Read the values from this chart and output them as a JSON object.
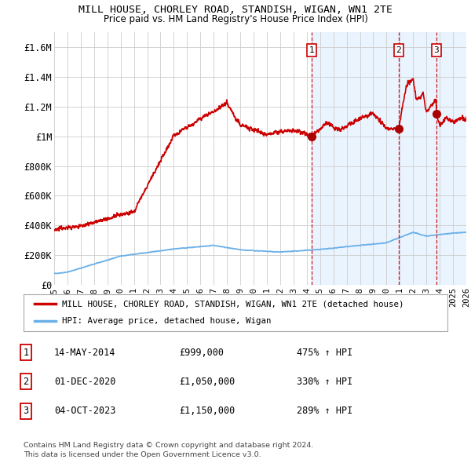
{
  "title": "MILL HOUSE, CHORLEY ROAD, STANDISH, WIGAN, WN1 2TE",
  "subtitle": "Price paid vs. HM Land Registry's House Price Index (HPI)",
  "xlim": [
    1995,
    2026
  ],
  "ylim": [
    0,
    1700000
  ],
  "yticks": [
    0,
    200000,
    400000,
    600000,
    800000,
    1000000,
    1200000,
    1400000,
    1600000
  ],
  "ytick_labels": [
    "£0",
    "£200K",
    "£400K",
    "£600K",
    "£800K",
    "£1M",
    "£1.2M",
    "£1.4M",
    "£1.6M"
  ],
  "xticks": [
    1995,
    1996,
    1997,
    1998,
    1999,
    2000,
    2001,
    2002,
    2003,
    2004,
    2005,
    2006,
    2007,
    2008,
    2009,
    2010,
    2011,
    2012,
    2013,
    2014,
    2015,
    2016,
    2017,
    2018,
    2019,
    2020,
    2021,
    2022,
    2023,
    2024,
    2025,
    2026
  ],
  "transactions": [
    {
      "date_num": 2014.37,
      "price": 999000,
      "label": "1",
      "date_str": "14-MAY-2014",
      "price_str": "£999,000",
      "pct": "475% ↑ HPI"
    },
    {
      "date_num": 2020.92,
      "price": 1050000,
      "label": "2",
      "date_str": "01-DEC-2020",
      "price_str": "£1,050,000",
      "pct": "330% ↑ HPI"
    },
    {
      "date_num": 2023.75,
      "price": 1150000,
      "label": "3",
      "date_str": "04-OCT-2023",
      "price_str": "£1,150,000",
      "pct": "289% ↑ HPI"
    }
  ],
  "hpi_color": "#6ab0e8",
  "property_color": "#cc0000",
  "dashed_color": "#cc0000",
  "shaded_color": "#ddeeff",
  "shaded_hatch": "////",
  "legend_label_property": "MILL HOUSE, CHORLEY ROAD, STANDISH, WIGAN, WN1 2TE (detached house)",
  "legend_label_hpi": "HPI: Average price, detached house, Wigan",
  "footer1": "Contains HM Land Registry data © Crown copyright and database right 2024.",
  "footer2": "This data is licensed under the Open Government Licence v3.0.",
  "background_color": "#ffffff",
  "grid_color": "#cccccc"
}
